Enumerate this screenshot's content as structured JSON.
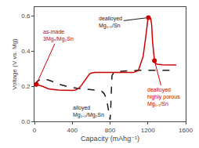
{
  "chart_data": {
    "type": "line",
    "xlabel": "Capacity (mAhg⁻¹)",
    "ylabel": "Voltage (V vs. Mg)",
    "xlim": [
      0,
      1600
    ],
    "ylim": [
      0,
      0.65
    ],
    "xticks": [
      0,
      400,
      800,
      1200,
      1600
    ],
    "yticks": [
      {
        "value": 0,
        "label": "0.0"
      },
      0.2,
      0.4,
      0.6
    ],
    "grid": false,
    "series": [
      {
        "type": "line",
        "color": "#1a1a1a",
        "line_style": "dashed",
        "x": [
          0,
          30,
          60,
          100,
          150,
          200,
          280,
          350,
          450,
          550,
          620,
          660,
          690,
          710,
          720,
          730,
          740,
          750,
          760,
          770,
          780,
          790,
          795,
          800,
          805,
          810,
          820,
          840,
          870,
          920,
          1000,
          1100,
          1200,
          1300,
          1400,
          1500
        ],
        "values": [
          0.21,
          0.228,
          0.238,
          0.24,
          0.235,
          0.225,
          0.208,
          0.198,
          0.188,
          0.183,
          0.18,
          0.178,
          0.175,
          0.172,
          0.168,
          0.162,
          0.155,
          0.145,
          0.13,
          0.105,
          0.075,
          0.04,
          0.02,
          0.01,
          0.05,
          0.15,
          0.26,
          0.278,
          0.282,
          0.285,
          0.288,
          0.29,
          0.29,
          0.29,
          0.29,
          0.29
        ]
      },
      {
        "type": "line",
        "color": "#cc0000",
        "line_style": "solid",
        "x": [
          0,
          30,
          80,
          150,
          250,
          350,
          400,
          430,
          460,
          490,
          510,
          540,
          560,
          580,
          600,
          620,
          640,
          660,
          680,
          700,
          720,
          740,
          760,
          780,
          800,
          820,
          850,
          900,
          950,
          1000,
          1050,
          1100,
          1150,
          1180,
          1200,
          1210,
          1220,
          1230,
          1240,
          1250,
          1260,
          1270,
          1280,
          1300,
          1350,
          1400,
          1450,
          1500
        ],
        "values": [
          0.21,
          0.208,
          0.2,
          0.185,
          0.178,
          0.175,
          0.176,
          0.178,
          0.185,
          0.2,
          0.215,
          0.24,
          0.255,
          0.268,
          0.275,
          0.278,
          0.278,
          0.278,
          0.278,
          0.278,
          0.278,
          0.278,
          0.278,
          0.278,
          0.278,
          0.278,
          0.278,
          0.278,
          0.278,
          0.278,
          0.278,
          0.29,
          0.37,
          0.49,
          0.58,
          0.59,
          0.59,
          0.585,
          0.55,
          0.45,
          0.38,
          0.345,
          0.33,
          0.325,
          0.322,
          0.321,
          0.32,
          0.32
        ]
      },
      {
        "type": "scatter",
        "color": "#cc0000",
        "marker": "circle",
        "x": [
          20,
          1205,
          1270
        ],
        "values": [
          0.21,
          0.59,
          0.345
        ]
      }
    ],
    "annotations": [
      {
        "text": "as-made\n3Mgₓ/Mg₂Sn",
        "color": "#cc0000",
        "x": 20,
        "y": 0.21,
        "arrow": true
      },
      {
        "text": "dealloyed\nMg₁.₀/Sn",
        "color": "#1a1a1a",
        "x": 1205,
        "y": 0.59,
        "arrow": true
      },
      {
        "text": "dealloyed\nhighly porous\nMg₁.₁/Sn",
        "color": "#cc0000",
        "x": 1270,
        "y": 0.345,
        "arrow": true
      },
      {
        "text": "alloyed\nMg₁.₀/Mg₂Sn",
        "color": "#1a1a1a",
        "x": 800,
        "y": 0.01,
        "arrow": false
      }
    ]
  }
}
